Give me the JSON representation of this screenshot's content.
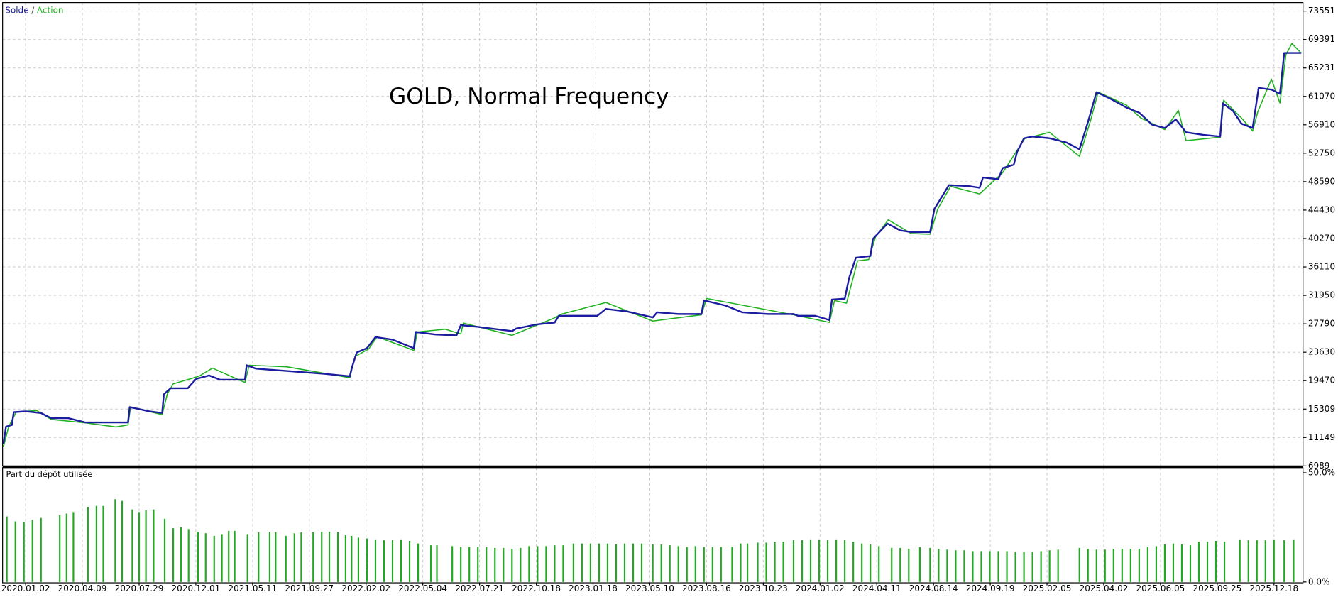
{
  "chart_data": [
    {
      "type": "line",
      "title": "GOLD, Normal Frequency",
      "legend_separator": "/",
      "xlim": [
        0,
        1524
      ],
      "ylim": [
        6989,
        73551
      ],
      "grid": true,
      "yticks": [
        6989,
        11149,
        15309,
        19470,
        23630,
        27790,
        31950,
        36110,
        40270,
        44430,
        48590,
        52750,
        56910,
        61070,
        65231,
        69391,
        73551
      ],
      "series": [
        {
          "name": "Solde",
          "color": "#1c1ca0",
          "x": [
            1,
            4,
            11,
            13,
            27,
            45,
            57,
            77,
            97,
            147,
            149,
            172,
            187,
            189,
            197,
            217,
            227,
            242,
            255,
            284,
            286,
            297,
            337,
            377,
            407,
            409,
            415,
            427,
            437,
            457,
            482,
            484,
            507,
            532,
            537,
            557,
            597,
            602,
            627,
            647,
            652,
            697,
            707,
            732,
            762,
            767,
            792,
            819,
            822,
            847,
            867,
            897,
            927,
            932,
            952,
            969,
            972,
            987,
            992,
            1000,
            1017,
            1020,
            1037,
            1052,
            1065,
            1087,
            1092,
            1109,
            1132,
            1145,
            1149,
            1167,
            1172,
            1185,
            1189,
            1197,
            1207,
            1227,
            1247,
            1262,
            1272,
            1282,
            1297,
            1317,
            1332,
            1347,
            1362,
            1375,
            1387,
            1407,
            1427,
            1430,
            1442,
            1452,
            1465,
            1472,
            1487,
            1497,
            1502,
            1522
          ],
          "values": [
            10236,
            12733,
            12983,
            14856,
            14981,
            14732,
            13982,
            13982,
            13358,
            13358,
            15606,
            14981,
            14732,
            17479,
            18353,
            18353,
            19727,
            20226,
            19602,
            19602,
            21725,
            21225,
            20851,
            20476,
            20101,
            21225,
            23598,
            24222,
            25846,
            25471,
            24222,
            26595,
            26221,
            26096,
            27594,
            27344,
            26720,
            27095,
            27719,
            27969,
            28968,
            28968,
            29967,
            29592,
            28718,
            29467,
            29218,
            29218,
            31216,
            30466,
            29467,
            29218,
            29218,
            28968,
            28968,
            28343,
            31341,
            31465,
            34463,
            37460,
            37709,
            40207,
            42455,
            41456,
            41206,
            41206,
            44578,
            48075,
            47950,
            47700,
            49198,
            48949,
            50572,
            51072,
            52945,
            54943,
            55193,
            54943,
            54319,
            53319,
            57316,
            61686,
            60812,
            59439,
            58689,
            56941,
            56441,
            57690,
            55817,
            55442,
            55193,
            60063,
            58939,
            57066,
            56441,
            62311,
            62061,
            61437,
            67431,
            67431
          ]
        },
        {
          "name": "Action",
          "color": "#1fb21f",
          "x": [
            1,
            7,
            16,
            40,
            57,
            97,
            133,
            147,
            150,
            187,
            193,
            200,
            230,
            246,
            284,
            289,
            333,
            407,
            413,
            429,
            439,
            482,
            486,
            519,
            537,
            540,
            597,
            646,
            655,
            707,
            762,
            819,
            825,
            927,
            969,
            975,
            989,
            1002,
            1015,
            1023,
            1038,
            1065,
            1087,
            1096,
            1111,
            1145,
            1172,
            1198,
            1227,
            1262,
            1275,
            1284,
            1317,
            1334,
            1362,
            1378,
            1387,
            1427,
            1431,
            1452,
            1465,
            1471,
            1487,
            1497,
            1504,
            1511,
            1522
          ],
          "values": [
            9800,
            12700,
            14900,
            15100,
            13800,
            13300,
            12700,
            13000,
            15600,
            14500,
            17500,
            19000,
            20100,
            21300,
            19200,
            21725,
            21500,
            19900,
            23000,
            24100,
            25900,
            23900,
            26600,
            27000,
            26300,
            27900,
            26100,
            28600,
            29200,
            30900,
            28200,
            29100,
            31500,
            29100,
            28000,
            31200,
            30800,
            37000,
            37200,
            40500,
            43000,
            41000,
            40900,
            44600,
            47900,
            46800,
            49900,
            54900,
            55800,
            52300,
            57500,
            61700,
            59800,
            57900,
            56200,
            59000,
            54600,
            55100,
            60500,
            57900,
            56000,
            58800,
            63600,
            60100,
            67200,
            68800,
            67400
          ]
        }
      ]
    },
    {
      "type": "bar",
      "title": "Part du dépôt utilisée",
      "color": "#22a822",
      "xlim": [
        0,
        1524
      ],
      "ylim": [
        0,
        50
      ],
      "grid": true,
      "yticks": [
        {
          "value": 0,
          "label": "0.0%"
        },
        {
          "value": 50,
          "label": "50.0%"
        }
      ],
      "xticks": [
        {
          "value": 27,
          "label": "2020.01.02"
        },
        {
          "value": 93.5,
          "label": "2020.04.09"
        },
        {
          "value": 160,
          "label": "2020.07.29"
        },
        {
          "value": 226.5,
          "label": "2020.12.01"
        },
        {
          "value": 293,
          "label": "2021.05.11"
        },
        {
          "value": 359.5,
          "label": "2021.09.27"
        },
        {
          "value": 426,
          "label": "2022.02.02"
        },
        {
          "value": 492.5,
          "label": "2022.05.04"
        },
        {
          "value": 559,
          "label": "2022.07.21"
        },
        {
          "value": 625.5,
          "label": "2022.10.18"
        },
        {
          "value": 692,
          "label": "2023.01.18"
        },
        {
          "value": 758.5,
          "label": "2023.05.10"
        },
        {
          "value": 825,
          "label": "2023.08.16"
        },
        {
          "value": 891.5,
          "label": "2023.10.23"
        },
        {
          "value": 958,
          "label": "2024.01.02"
        },
        {
          "value": 1024.5,
          "label": "2024.04.11"
        },
        {
          "value": 1091,
          "label": "2024.08.14"
        },
        {
          "value": 1157.5,
          "label": "2024.09.19"
        },
        {
          "value": 1224,
          "label": "2025.02.05"
        },
        {
          "value": 1290.5,
          "label": "2025.04.02"
        },
        {
          "value": 1357,
          "label": "2025.06.05"
        },
        {
          "value": 1423.5,
          "label": "2025.09.25"
        },
        {
          "value": 1490,
          "label": "2025.12.18"
        }
      ],
      "x": [
        5,
        15,
        25,
        35,
        45,
        67,
        75,
        83,
        100,
        110,
        118,
        132,
        140,
        152,
        160,
        168,
        177,
        190,
        200,
        209,
        218,
        229,
        238,
        248,
        257,
        265,
        272,
        287,
        300,
        313,
        320,
        332,
        342,
        350,
        364,
        374,
        383,
        393,
        402,
        409,
        417,
        427,
        437,
        447,
        457,
        467,
        477,
        487,
        502,
        509,
        527,
        537,
        547,
        557,
        567,
        577,
        587,
        597,
        607,
        617,
        627,
        637,
        647,
        657,
        669,
        679,
        689,
        699,
        709,
        719,
        729,
        739,
        749,
        762,
        772,
        782,
        792,
        802,
        812,
        822,
        832,
        842,
        855,
        865,
        873,
        885,
        895,
        905,
        915,
        927,
        937,
        947,
        957,
        967,
        977,
        987,
        997,
        1007,
        1017,
        1027,
        1042,
        1052,
        1062,
        1075,
        1087,
        1097,
        1107,
        1117,
        1127,
        1137,
        1147,
        1157,
        1167,
        1177,
        1187,
        1197,
        1207,
        1217,
        1227,
        1237,
        1262,
        1272,
        1282,
        1292,
        1302,
        1312,
        1322,
        1332,
        1342,
        1352,
        1362,
        1372,
        1382,
        1392,
        1402,
        1412,
        1422,
        1432,
        1450,
        1460,
        1470,
        1480,
        1490,
        1502,
        1513
      ],
      "values": [
        30,
        27.7,
        27.3,
        28.5,
        29.3,
        30.5,
        31.3,
        32,
        34.4,
        34.8,
        34.8,
        37.9,
        37.1,
        33.2,
        32,
        32.8,
        33.2,
        28.9,
        24.6,
        25,
        24.2,
        23,
        22.3,
        21.1,
        21.9,
        23.4,
        23.4,
        21.9,
        22.7,
        22.7,
        22.7,
        21.1,
        22.3,
        22.7,
        22.7,
        23,
        23,
        22.7,
        21.5,
        21.1,
        20.3,
        19.9,
        19.5,
        19.1,
        19.1,
        19.5,
        18.8,
        17.6,
        16.8,
        16.8,
        16.4,
        16,
        16,
        16,
        16,
        15.6,
        15.6,
        15.2,
        15.6,
        16.4,
        16.4,
        16.4,
        16.8,
        16.8,
        17.6,
        17.6,
        17.6,
        17.6,
        17.6,
        17.2,
        17.6,
        17.6,
        17.6,
        17.2,
        17.2,
        16.8,
        16.4,
        16,
        16.4,
        16,
        16,
        16,
        16,
        17.6,
        17.6,
        18,
        18,
        18.4,
        18.4,
        19.1,
        19.1,
        19.5,
        19.5,
        19.1,
        19.5,
        19.1,
        18.4,
        17.6,
        17.2,
        16.4,
        15.6,
        15.6,
        15.2,
        16,
        15.6,
        15.2,
        14.8,
        14.5,
        14.5,
        14.1,
        14.1,
        14.1,
        14.1,
        14.1,
        13.7,
        13.7,
        13.7,
        14.1,
        14.5,
        14.8,
        15.6,
        15.2,
        14.8,
        14.8,
        15.2,
        15.2,
        15.2,
        15.2,
        16,
        16.4,
        17.2,
        17.6,
        17.2,
        16.8,
        18.4,
        18.4,
        18.8,
        18.4,
        19.5,
        19.1,
        19.1,
        19.1,
        19.5,
        19.1,
        19.5
      ]
    }
  ]
}
